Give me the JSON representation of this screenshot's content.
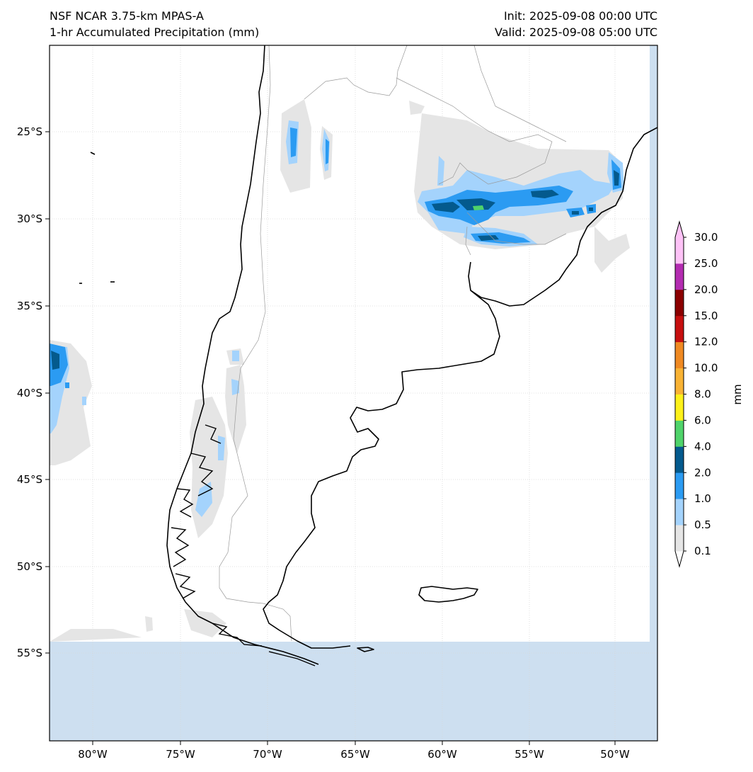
{
  "header": {
    "model": "NSF NCAR 3.75-km MPAS-A",
    "product": "1-hr Accumulated Precipitation (mm)",
    "init": "Init: 2025-09-08 00:00 UTC",
    "valid": "Valid: 2025-09-08 05:00 UTC"
  },
  "axes": {
    "lat_labels": [
      "25°S",
      "30°S",
      "35°S",
      "40°S",
      "45°S",
      "50°S",
      "55°S"
    ],
    "lon_labels": [
      "80°W",
      "75°W",
      "70°W",
      "65°W",
      "60°W",
      "55°W",
      "50°W"
    ]
  },
  "colorbar": {
    "unit_label": "mm",
    "levels": [
      "0.1",
      "0.5",
      "1.0",
      "2.0",
      "4.0",
      "6.0",
      "8.0",
      "10.0",
      "12.0",
      "15.0",
      "20.0",
      "25.0",
      "30.0"
    ],
    "colors": [
      "#e5e5e5",
      "#a4d3fc",
      "#2b9bf2",
      "#045a8d",
      "#4fd36a",
      "#fdf11a",
      "#f8b234",
      "#ef8922",
      "#c60f0f",
      "#8b0000",
      "#b32cb0",
      "#fdc2f6"
    ],
    "under_color": "#ffffff"
  },
  "map": {
    "ocean_nodata_color": "#cddff0",
    "coast_color": "#000000",
    "border_color": "#9a9a9a"
  }
}
